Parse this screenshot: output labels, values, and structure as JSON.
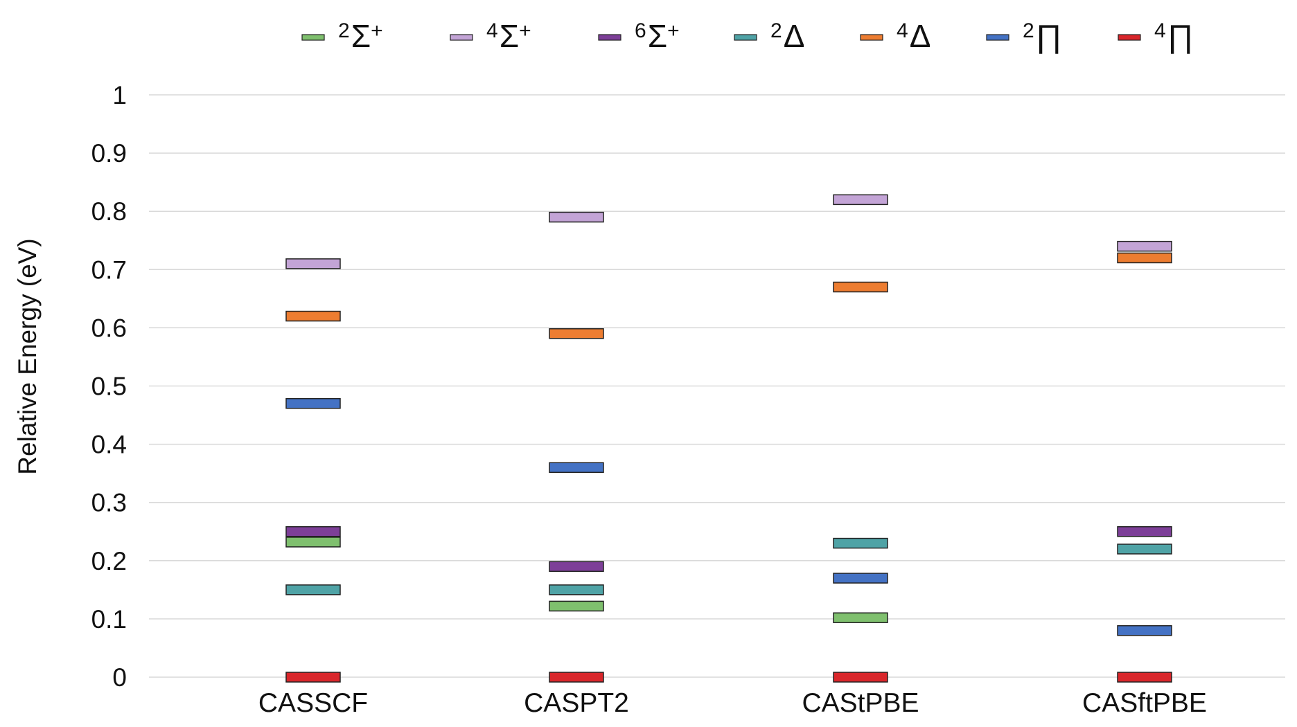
{
  "chart_data": {
    "type": "energy-level",
    "title": "",
    "xlabel": "",
    "ylabel": "Relative Energy (eV)",
    "ylim": [
      0,
      1
    ],
    "yticks": [
      "0",
      "0.1",
      "0.2",
      "0.3",
      "0.4",
      "0.5",
      "0.6",
      "0.7",
      "0.8",
      "0.9",
      "1"
    ],
    "grid": true,
    "legend_position": "top",
    "categories": [
      "CASSCF",
      "CASPT2",
      "CAStPBE",
      "CASftPBE"
    ],
    "series": [
      {
        "name": "2Σ+",
        "sup": "2",
        "symbol": "Σ",
        "tail": "+",
        "color": "#7fc06e",
        "values": [
          0.232,
          0.122,
          0.102,
          null
        ]
      },
      {
        "name": "4Σ+",
        "sup": "4",
        "symbol": "Σ",
        "tail": "+",
        "color": "#c3a4d6",
        "values": [
          0.71,
          0.79,
          0.82,
          0.74
        ]
      },
      {
        "name": "6Σ+",
        "sup": "6",
        "symbol": "Σ",
        "tail": "+",
        "color": "#7d3f98",
        "values": [
          0.25,
          0.19,
          null,
          0.25
        ]
      },
      {
        "name": "2Δ",
        "sup": "2",
        "symbol": "Δ",
        "tail": "",
        "color": "#4fa3a6",
        "values": [
          0.15,
          0.15,
          0.23,
          0.22
        ]
      },
      {
        "name": "4Δ",
        "sup": "4",
        "symbol": "Δ",
        "tail": "",
        "color": "#ed7d31",
        "values": [
          0.62,
          0.59,
          0.67,
          0.72
        ]
      },
      {
        "name": "2Π",
        "sup": "2",
        "symbol": "∏",
        "tail": "",
        "color": "#4472c4",
        "values": [
          0.47,
          0.36,
          0.17,
          0.08
        ]
      },
      {
        "name": "4Π",
        "sup": "4",
        "symbol": "∏",
        "tail": "",
        "color": "#d9262b",
        "values": [
          0.0,
          0.0,
          0.0,
          0.0
        ]
      }
    ]
  }
}
